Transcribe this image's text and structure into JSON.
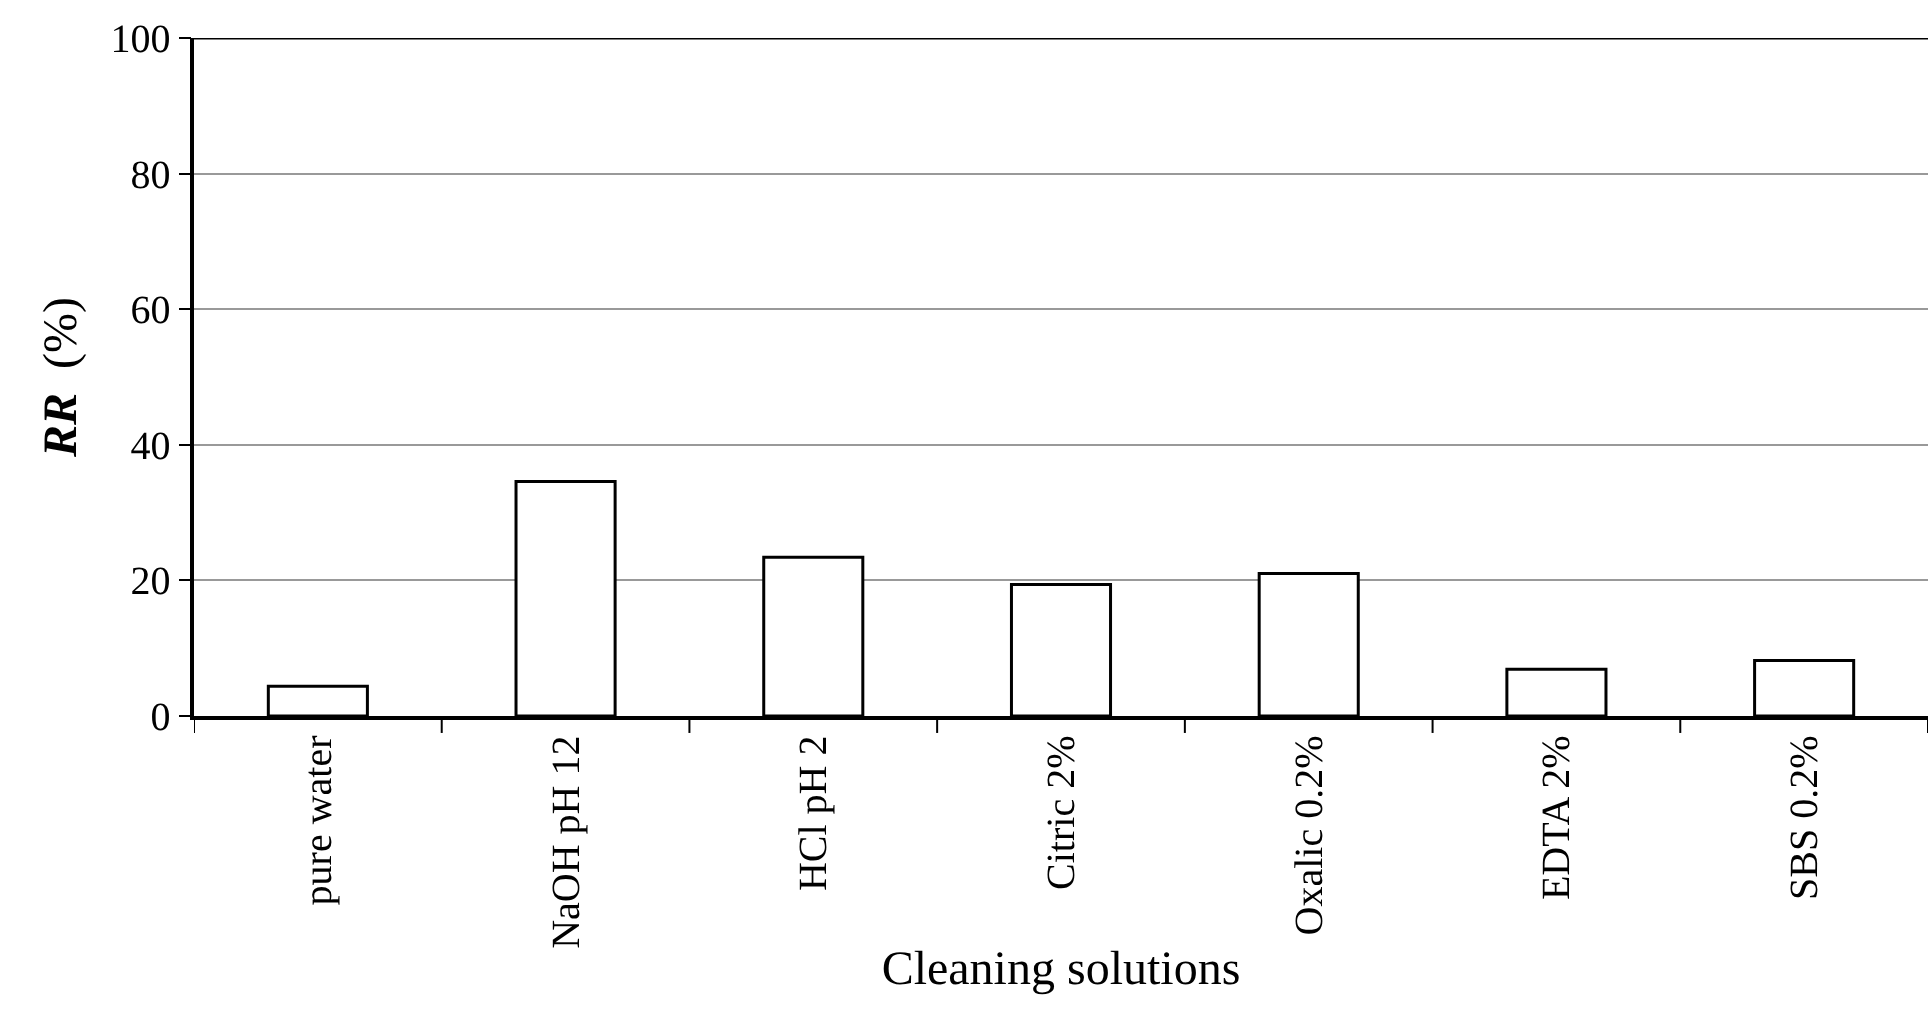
{
  "chart_data": {
    "type": "bar",
    "xlabel": "Cleaning solutions",
    "ylabel": "RR (%)",
    "categories": [
      "pure water",
      "NaOH pH 12",
      "HCl pH 2",
      "Citric 2%",
      "Oxalic 0.2%",
      "EDTA 2%",
      "SBS 0.2%"
    ],
    "values": [
      4.4,
      34.6,
      23.4,
      19.4,
      21.0,
      6.9,
      8.2
    ],
    "color": "#ffffff",
    "ylim": [
      0,
      100
    ],
    "yticks": [
      0,
      20,
      40,
      60,
      80,
      100
    ],
    "grid": "y"
  }
}
